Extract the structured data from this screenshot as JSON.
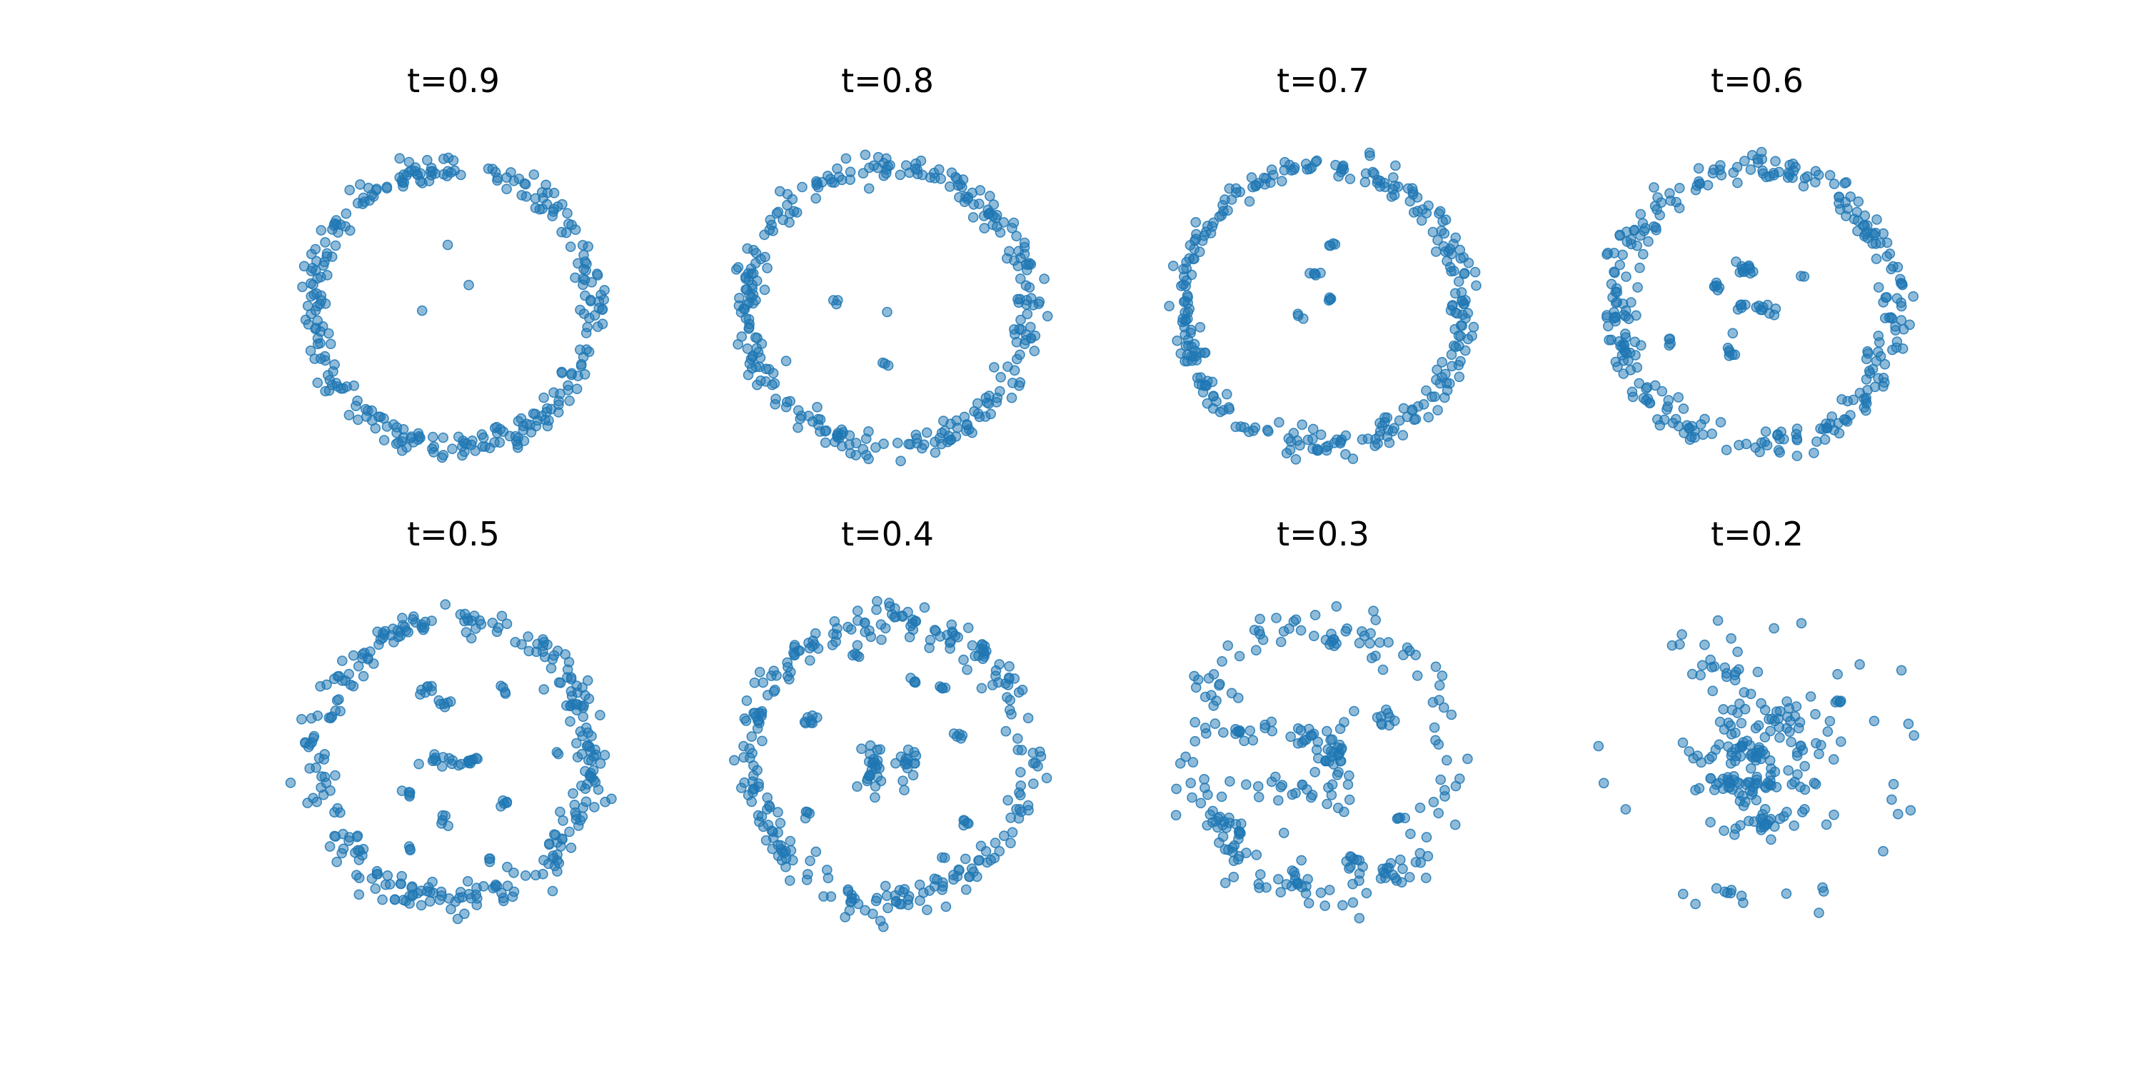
{
  "figure": {
    "marker_color": "#1f77b4",
    "marker_opacity": 0.5,
    "grid": false,
    "axes_visible": false
  },
  "chart_data": [
    {
      "type": "scatter",
      "title": "t=0.9",
      "xlim": [
        -1.2,
        1.2
      ],
      "ylim": [
        -1.2,
        1.2
      ],
      "ring": {
        "radius": 1.0,
        "spread": 0.05,
        "count": 300,
        "gap": 0.0
      },
      "clusters": [
        {
          "cx": -0.05,
          "cy": 0.45,
          "rx": 0.005,
          "ry": 0.005,
          "count": 1
        },
        {
          "cx": 0.13,
          "cy": 0.15,
          "rx": 0.005,
          "ry": 0.005,
          "count": 1
        },
        {
          "cx": -0.22,
          "cy": -0.03,
          "rx": 0.005,
          "ry": 0.005,
          "count": 1
        }
      ]
    },
    {
      "type": "scatter",
      "title": "t=0.8",
      "xlim": [
        -1.2,
        1.2
      ],
      "ylim": [
        -1.2,
        1.2
      ],
      "ring": {
        "radius": 1.0,
        "spread": 0.05,
        "count": 300,
        "gap": 0.0
      },
      "clusters": [
        {
          "cx": -0.37,
          "cy": 0.04,
          "rx": 0.01,
          "ry": 0.01,
          "count": 3
        },
        {
          "cx": 0.0,
          "cy": -0.04,
          "rx": 0.005,
          "ry": 0.005,
          "count": 1
        },
        {
          "cx": -0.02,
          "cy": -0.4,
          "rx": 0.015,
          "ry": 0.008,
          "count": 3
        }
      ]
    },
    {
      "type": "scatter",
      "title": "t=0.7",
      "xlim": [
        -1.2,
        1.2
      ],
      "ylim": [
        -1.2,
        1.2
      ],
      "ring": {
        "radius": 1.0,
        "spread": 0.05,
        "count": 300,
        "gap": 0.0
      },
      "clusters": [
        {
          "cx": 0.07,
          "cy": 0.45,
          "rx": 0.02,
          "ry": 0.008,
          "count": 4
        },
        {
          "cx": -0.08,
          "cy": 0.24,
          "rx": 0.02,
          "ry": 0.01,
          "count": 5
        },
        {
          "cx": 0.04,
          "cy": 0.06,
          "rx": 0.012,
          "ry": 0.01,
          "count": 4
        },
        {
          "cx": -0.16,
          "cy": -0.07,
          "rx": 0.015,
          "ry": 0.01,
          "count": 3
        }
      ]
    },
    {
      "type": "scatter",
      "title": "t=0.6",
      "xlim": [
        -1.2,
        1.2
      ],
      "ylim": [
        -1.2,
        1.2
      ],
      "ring": {
        "radius": 1.0,
        "spread": 0.06,
        "count": 300,
        "gap": 0.0
      },
      "clusters": [
        {
          "cx": -0.08,
          "cy": 0.28,
          "rx": 0.04,
          "ry": 0.03,
          "count": 12
        },
        {
          "cx": -0.28,
          "cy": 0.15,
          "rx": 0.02,
          "ry": 0.02,
          "count": 6
        },
        {
          "cx": 0.33,
          "cy": 0.23,
          "rx": 0.01,
          "ry": 0.01,
          "count": 2
        },
        {
          "cx": -0.02,
          "cy": 0.0,
          "rx": 0.07,
          "ry": 0.02,
          "count": 14
        },
        {
          "cx": -0.63,
          "cy": -0.25,
          "rx": 0.02,
          "ry": 0.02,
          "count": 4
        },
        {
          "cx": -0.18,
          "cy": -0.3,
          "rx": 0.02,
          "ry": 0.04,
          "count": 7
        }
      ]
    },
    {
      "type": "scatter",
      "title": "t=0.5",
      "xlim": [
        -1.2,
        1.2
      ],
      "ylim": [
        -1.2,
        1.2
      ],
      "ring": {
        "radius": 1.0,
        "spread": 0.06,
        "count": 300,
        "gap": 0.0
      },
      "clusters": [
        {
          "cx": -0.2,
          "cy": 0.52,
          "rx": 0.03,
          "ry": 0.02,
          "count": 7
        },
        {
          "cx": -0.08,
          "cy": 0.4,
          "rx": 0.03,
          "ry": 0.02,
          "count": 6
        },
        {
          "cx": 0.37,
          "cy": 0.5,
          "rx": 0.02,
          "ry": 0.02,
          "count": 4
        },
        {
          "cx": -0.02,
          "cy": 0.0,
          "rx": 0.12,
          "ry": 0.02,
          "count": 22
        },
        {
          "cx": 0.75,
          "cy": 0.05,
          "rx": 0.01,
          "ry": 0.01,
          "count": 2
        },
        {
          "cx": -0.32,
          "cy": -0.25,
          "rx": 0.02,
          "ry": 0.02,
          "count": 5
        },
        {
          "cx": 0.35,
          "cy": -0.3,
          "rx": 0.03,
          "ry": 0.015,
          "count": 5
        },
        {
          "cx": -0.06,
          "cy": -0.42,
          "rx": 0.015,
          "ry": 0.025,
          "count": 5
        },
        {
          "cx": -0.3,
          "cy": -0.62,
          "rx": 0.01,
          "ry": 0.01,
          "count": 3
        },
        {
          "cx": 0.25,
          "cy": -0.7,
          "rx": 0.012,
          "ry": 0.012,
          "count": 3
        }
      ]
    },
    {
      "type": "scatter",
      "title": "t=0.4",
      "xlim": [
        -1.2,
        1.2
      ],
      "ylim": [
        -1.2,
        1.2
      ],
      "ring": {
        "radius": 1.0,
        "spread": 0.06,
        "count": 280,
        "gap": 0.0
      },
      "clusters": [
        {
          "cx": -0.22,
          "cy": 0.75,
          "rx": 0.015,
          "ry": 0.012,
          "count": 4
        },
        {
          "cx": 0.2,
          "cy": 0.57,
          "rx": 0.02,
          "ry": 0.015,
          "count": 4
        },
        {
          "cx": 0.4,
          "cy": 0.52,
          "rx": 0.015,
          "ry": 0.015,
          "count": 4
        },
        {
          "cx": -0.55,
          "cy": 0.28,
          "rx": 0.05,
          "ry": 0.02,
          "count": 8
        },
        {
          "cx": 0.5,
          "cy": 0.18,
          "rx": 0.03,
          "ry": 0.02,
          "count": 5
        },
        {
          "cx": -0.1,
          "cy": -0.05,
          "rx": 0.04,
          "ry": 0.12,
          "count": 26
        },
        {
          "cx": 0.15,
          "cy": 0.0,
          "rx": 0.03,
          "ry": 0.08,
          "count": 16
        },
        {
          "cx": -0.6,
          "cy": -0.4,
          "rx": 0.015,
          "ry": 0.02,
          "count": 4
        },
        {
          "cx": 0.55,
          "cy": -0.45,
          "rx": 0.02,
          "ry": 0.03,
          "count": 5
        },
        {
          "cx": 0.4,
          "cy": -0.7,
          "rx": 0.01,
          "ry": 0.01,
          "count": 2
        }
      ]
    },
    {
      "type": "scatter",
      "title": "t=0.3",
      "xlim": [
        -1.2,
        1.2
      ],
      "ylim": [
        -1.2,
        1.2
      ],
      "ring": {
        "radius": 0.95,
        "spread": 0.09,
        "count": 150,
        "gap": 0.0
      },
      "clusters": [
        {
          "cx": -0.55,
          "cy": 0.22,
          "rx": 0.12,
          "ry": 0.04,
          "count": 14
        },
        {
          "cx": -0.15,
          "cy": 0.15,
          "rx": 0.1,
          "ry": 0.05,
          "count": 14
        },
        {
          "cx": 0.1,
          "cy": 0.05,
          "rx": 0.08,
          "ry": 0.15,
          "count": 30
        },
        {
          "cx": -0.1,
          "cy": -0.2,
          "rx": 0.2,
          "ry": 0.06,
          "count": 22
        },
        {
          "cx": 0.45,
          "cy": 0.3,
          "rx": 0.05,
          "ry": 0.05,
          "count": 9
        },
        {
          "cx": -0.7,
          "cy": -0.4,
          "rx": 0.05,
          "ry": 0.03,
          "count": 8
        },
        {
          "cx": -0.6,
          "cy": -0.55,
          "rx": 0.02,
          "ry": 0.05,
          "count": 8
        },
        {
          "cx": 0.55,
          "cy": -0.4,
          "rx": 0.02,
          "ry": 0.015,
          "count": 4
        },
        {
          "cx": 0.2,
          "cy": -0.7,
          "rx": 0.03,
          "ry": 0.03,
          "count": 8
        },
        {
          "cx": -0.2,
          "cy": -0.85,
          "rx": 0.03,
          "ry": 0.03,
          "count": 8
        },
        {
          "cx": 0.05,
          "cy": 0.85,
          "rx": 0.03,
          "ry": 0.02,
          "count": 6
        },
        {
          "cx": 0.45,
          "cy": -0.8,
          "rx": 0.03,
          "ry": 0.02,
          "count": 6
        }
      ]
    },
    {
      "type": "scatter",
      "title": "t=0.2",
      "xlim": [
        -1.2,
        1.2
      ],
      "ylim": [
        -1.2,
        1.2
      ],
      "ring": {
        "radius": 1.0,
        "spread": 0.1,
        "count": 34,
        "gap": 0.0
      },
      "clusters": [
        {
          "cx": -0.25,
          "cy": 0.65,
          "rx": 0.12,
          "ry": 0.03,
          "count": 14
        },
        {
          "cx": 0.0,
          "cy": 0.3,
          "rx": 0.25,
          "ry": 0.1,
          "count": 50
        },
        {
          "cx": 0.0,
          "cy": 0.05,
          "rx": 0.22,
          "ry": 0.05,
          "count": 45
        },
        {
          "cx": 0.0,
          "cy": -0.15,
          "rx": 0.2,
          "ry": 0.05,
          "count": 40
        },
        {
          "cx": 0.05,
          "cy": -0.45,
          "rx": 0.15,
          "ry": 0.06,
          "count": 30
        },
        {
          "cx": -0.2,
          "cy": -0.22,
          "rx": 0.1,
          "ry": 0.04,
          "count": 14
        },
        {
          "cx": 0.6,
          "cy": 0.45,
          "rx": 0.03,
          "ry": 0.02,
          "count": 4
        },
        {
          "cx": -0.2,
          "cy": -0.95,
          "rx": 0.02,
          "ry": 0.01,
          "count": 3
        }
      ]
    }
  ]
}
